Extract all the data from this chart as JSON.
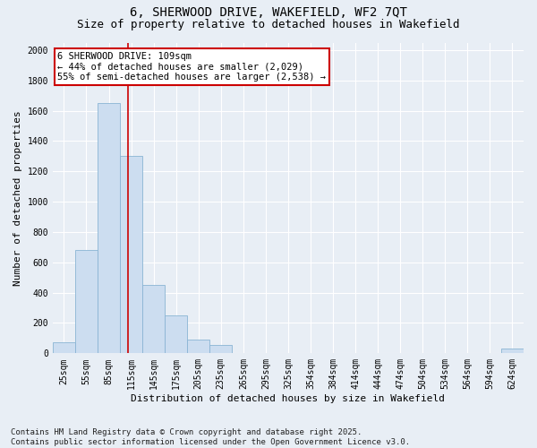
{
  "title_line1": "6, SHERWOOD DRIVE, WAKEFIELD, WF2 7QT",
  "title_line2": "Size of property relative to detached houses in Wakefield",
  "xlabel": "Distribution of detached houses by size in Wakefield",
  "ylabel": "Number of detached properties",
  "bar_labels": [
    "25sqm",
    "55sqm",
    "85sqm",
    "115sqm",
    "145sqm",
    "175sqm",
    "205sqm",
    "235sqm",
    "265sqm",
    "295sqm",
    "325sqm",
    "354sqm",
    "384sqm",
    "414sqm",
    "444sqm",
    "474sqm",
    "504sqm",
    "534sqm",
    "564sqm",
    "594sqm",
    "624sqm"
  ],
  "bar_values": [
    70,
    680,
    1650,
    1300,
    450,
    250,
    90,
    55,
    0,
    0,
    0,
    0,
    0,
    0,
    0,
    0,
    0,
    0,
    0,
    0,
    30
  ],
  "bar_color": "#ccddf0",
  "bar_edge_color": "#8ab4d4",
  "vline_position": 2.867,
  "annotation_line1": "6 SHERWOOD DRIVE: 109sqm",
  "annotation_line2": "← 44% of detached houses are smaller (2,029)",
  "annotation_line3": "55% of semi-detached houses are larger (2,538) →",
  "annotation_box_color": "#ffffff",
  "annotation_box_edge_color": "#cc0000",
  "ylim": [
    0,
    2050
  ],
  "yticks": [
    0,
    200,
    400,
    600,
    800,
    1000,
    1200,
    1400,
    1600,
    1800,
    2000
  ],
  "bg_color": "#e8eef5",
  "grid_color": "#ffffff",
  "vline_color": "#cc0000",
  "footnote": "Contains HM Land Registry data © Crown copyright and database right 2025.\nContains public sector information licensed under the Open Government Licence v3.0.",
  "title_fontsize": 10,
  "subtitle_fontsize": 9,
  "axis_label_fontsize": 8,
  "tick_fontsize": 7,
  "annotation_fontsize": 7.5,
  "footnote_fontsize": 6.5
}
